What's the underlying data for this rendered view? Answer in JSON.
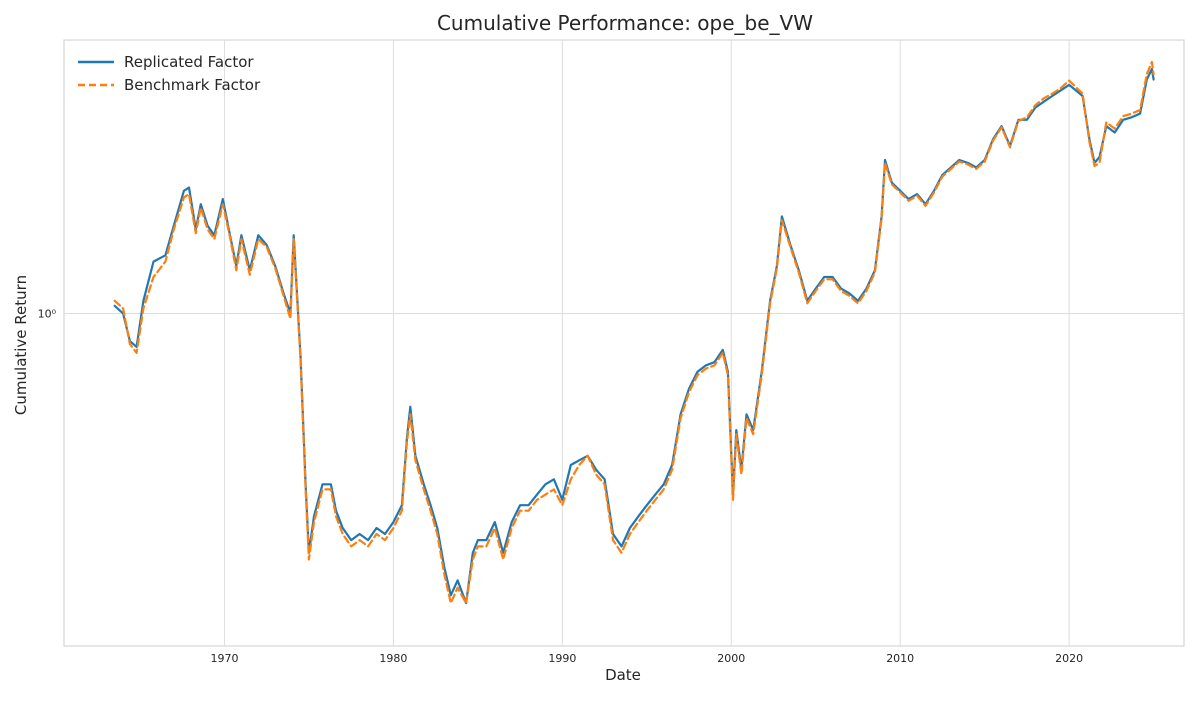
{
  "chart_data": {
    "type": "line",
    "title": "Cumulative Performance: ope_be_VW",
    "xlabel": "Date",
    "ylabel": "Cumulative Return",
    "y_scale": "log",
    "ylim": [
      0.28,
      2.85
    ],
    "xlim": [
      1960.5,
      2026.8
    ],
    "x_ticks": [
      1970,
      1980,
      1990,
      2000,
      2010,
      2020
    ],
    "y_ticks": [
      1
    ],
    "y_tick_labels": [
      "10⁰"
    ],
    "grid": true,
    "legend_position": "top-left",
    "colors": {
      "replicated": "#1f77b4",
      "benchmark": "#ff7f0e"
    },
    "series": [
      {
        "name": "Replicated Factor",
        "style": "solid",
        "points": [
          [
            1963.5,
            1.03
          ],
          [
            1964.0,
            1.0
          ],
          [
            1964.4,
            0.9
          ],
          [
            1964.8,
            0.88
          ],
          [
            1965.2,
            1.05
          ],
          [
            1965.8,
            1.22
          ],
          [
            1966.5,
            1.25
          ],
          [
            1967.0,
            1.4
          ],
          [
            1967.6,
            1.6
          ],
          [
            1967.9,
            1.62
          ],
          [
            1968.3,
            1.38
          ],
          [
            1968.6,
            1.52
          ],
          [
            1969.0,
            1.4
          ],
          [
            1969.4,
            1.35
          ],
          [
            1969.9,
            1.55
          ],
          [
            1970.3,
            1.36
          ],
          [
            1970.7,
            1.2
          ],
          [
            1971.0,
            1.35
          ],
          [
            1971.5,
            1.18
          ],
          [
            1972.0,
            1.35
          ],
          [
            1972.5,
            1.3
          ],
          [
            1973.0,
            1.2
          ],
          [
            1973.5,
            1.08
          ],
          [
            1973.9,
            1.0
          ],
          [
            1974.1,
            1.35
          ],
          [
            1974.5,
            0.85
          ],
          [
            1974.8,
            0.52
          ],
          [
            1975.0,
            0.4
          ],
          [
            1975.3,
            0.46
          ],
          [
            1975.8,
            0.52
          ],
          [
            1976.3,
            0.52
          ],
          [
            1976.6,
            0.47
          ],
          [
            1977.0,
            0.44
          ],
          [
            1977.5,
            0.42
          ],
          [
            1978.0,
            0.43
          ],
          [
            1978.5,
            0.42
          ],
          [
            1979.0,
            0.44
          ],
          [
            1979.5,
            0.43
          ],
          [
            1980.0,
            0.45
          ],
          [
            1980.5,
            0.48
          ],
          [
            1980.8,
            0.62
          ],
          [
            1981.0,
            0.7
          ],
          [
            1981.3,
            0.58
          ],
          [
            1981.8,
            0.52
          ],
          [
            1982.2,
            0.48
          ],
          [
            1982.6,
            0.44
          ],
          [
            1983.0,
            0.38
          ],
          [
            1983.4,
            0.34
          ],
          [
            1983.8,
            0.36
          ],
          [
            1984.3,
            0.33
          ],
          [
            1984.7,
            0.4
          ],
          [
            1985.0,
            0.42
          ],
          [
            1985.5,
            0.42
          ],
          [
            1986.0,
            0.45
          ],
          [
            1986.5,
            0.4
          ],
          [
            1987.0,
            0.45
          ],
          [
            1987.5,
            0.48
          ],
          [
            1988.0,
            0.48
          ],
          [
            1988.5,
            0.5
          ],
          [
            1989.0,
            0.52
          ],
          [
            1989.5,
            0.53
          ],
          [
            1990.0,
            0.49
          ],
          [
            1990.5,
            0.56
          ],
          [
            1991.0,
            0.57
          ],
          [
            1991.5,
            0.58
          ],
          [
            1992.0,
            0.55
          ],
          [
            1992.5,
            0.53
          ],
          [
            1993.0,
            0.43
          ],
          [
            1993.5,
            0.41
          ],
          [
            1994.0,
            0.44
          ],
          [
            1994.5,
            0.46
          ],
          [
            1995.0,
            0.48
          ],
          [
            1995.5,
            0.5
          ],
          [
            1996.0,
            0.52
          ],
          [
            1996.5,
            0.56
          ],
          [
            1997.0,
            0.68
          ],
          [
            1997.5,
            0.75
          ],
          [
            1998.0,
            0.8
          ],
          [
            1998.5,
            0.82
          ],
          [
            1999.0,
            0.83
          ],
          [
            1999.5,
            0.87
          ],
          [
            1999.8,
            0.8
          ],
          [
            2000.1,
            0.5
          ],
          [
            2000.3,
            0.64
          ],
          [
            2000.6,
            0.55
          ],
          [
            2000.9,
            0.68
          ],
          [
            2001.3,
            0.64
          ],
          [
            2001.8,
            0.8
          ],
          [
            2002.3,
            1.05
          ],
          [
            2002.7,
            1.2
          ],
          [
            2003.0,
            1.45
          ],
          [
            2003.5,
            1.3
          ],
          [
            2004.0,
            1.18
          ],
          [
            2004.5,
            1.05
          ],
          [
            2005.0,
            1.1
          ],
          [
            2005.5,
            1.15
          ],
          [
            2006.0,
            1.15
          ],
          [
            2006.5,
            1.1
          ],
          [
            2007.0,
            1.08
          ],
          [
            2007.5,
            1.05
          ],
          [
            2008.0,
            1.1
          ],
          [
            2008.5,
            1.18
          ],
          [
            2008.9,
            1.45
          ],
          [
            2009.1,
            1.8
          ],
          [
            2009.5,
            1.65
          ],
          [
            2010.0,
            1.6
          ],
          [
            2010.5,
            1.55
          ],
          [
            2011.0,
            1.58
          ],
          [
            2011.5,
            1.52
          ],
          [
            2012.0,
            1.6
          ],
          [
            2012.5,
            1.7
          ],
          [
            2013.0,
            1.75
          ],
          [
            2013.5,
            1.8
          ],
          [
            2014.0,
            1.78
          ],
          [
            2014.5,
            1.75
          ],
          [
            2015.0,
            1.8
          ],
          [
            2015.5,
            1.95
          ],
          [
            2016.0,
            2.05
          ],
          [
            2016.5,
            1.9
          ],
          [
            2017.0,
            2.1
          ],
          [
            2017.5,
            2.1
          ],
          [
            2018.0,
            2.2
          ],
          [
            2018.5,
            2.25
          ],
          [
            2019.0,
            2.3
          ],
          [
            2019.5,
            2.35
          ],
          [
            2020.0,
            2.4
          ],
          [
            2020.4,
            2.35
          ],
          [
            2020.8,
            2.3
          ],
          [
            2021.2,
            1.95
          ],
          [
            2021.5,
            1.78
          ],
          [
            2021.8,
            1.82
          ],
          [
            2022.2,
            2.05
          ],
          [
            2022.7,
            2.0
          ],
          [
            2023.2,
            2.1
          ],
          [
            2023.7,
            2.12
          ],
          [
            2024.2,
            2.15
          ],
          [
            2024.6,
            2.45
          ],
          [
            2024.9,
            2.55
          ],
          [
            2025.0,
            2.45
          ]
        ]
      },
      {
        "name": "Benchmark Factor",
        "style": "dashed",
        "points": [
          [
            1963.5,
            1.05
          ],
          [
            1964.0,
            1.02
          ],
          [
            1964.4,
            0.89
          ],
          [
            1964.8,
            0.86
          ],
          [
            1965.2,
            1.02
          ],
          [
            1965.8,
            1.15
          ],
          [
            1966.5,
            1.22
          ],
          [
            1967.0,
            1.38
          ],
          [
            1967.6,
            1.56
          ],
          [
            1967.9,
            1.58
          ],
          [
            1968.3,
            1.36
          ],
          [
            1968.6,
            1.5
          ],
          [
            1969.0,
            1.38
          ],
          [
            1969.4,
            1.33
          ],
          [
            1969.9,
            1.52
          ],
          [
            1970.3,
            1.35
          ],
          [
            1970.7,
            1.18
          ],
          [
            1971.0,
            1.33
          ],
          [
            1971.5,
            1.16
          ],
          [
            1972.0,
            1.33
          ],
          [
            1972.5,
            1.29
          ],
          [
            1973.0,
            1.19
          ],
          [
            1973.5,
            1.07
          ],
          [
            1973.9,
            0.98
          ],
          [
            1974.1,
            1.33
          ],
          [
            1974.5,
            0.84
          ],
          [
            1974.8,
            0.51
          ],
          [
            1975.0,
            0.39
          ],
          [
            1975.3,
            0.45
          ],
          [
            1975.8,
            0.51
          ],
          [
            1976.3,
            0.51
          ],
          [
            1976.6,
            0.46
          ],
          [
            1977.0,
            0.43
          ],
          [
            1977.5,
            0.41
          ],
          [
            1978.0,
            0.42
          ],
          [
            1978.5,
            0.41
          ],
          [
            1979.0,
            0.43
          ],
          [
            1979.5,
            0.42
          ],
          [
            1980.0,
            0.44
          ],
          [
            1980.5,
            0.47
          ],
          [
            1980.8,
            0.61
          ],
          [
            1981.0,
            0.68
          ],
          [
            1981.3,
            0.57
          ],
          [
            1981.8,
            0.51
          ],
          [
            1982.2,
            0.47
          ],
          [
            1982.6,
            0.43
          ],
          [
            1983.0,
            0.37
          ],
          [
            1983.4,
            0.33
          ],
          [
            1983.8,
            0.35
          ],
          [
            1984.3,
            0.33
          ],
          [
            1984.7,
            0.39
          ],
          [
            1985.0,
            0.41
          ],
          [
            1985.5,
            0.41
          ],
          [
            1986.0,
            0.44
          ],
          [
            1986.5,
            0.39
          ],
          [
            1987.0,
            0.44
          ],
          [
            1987.5,
            0.47
          ],
          [
            1988.0,
            0.47
          ],
          [
            1988.5,
            0.49
          ],
          [
            1989.0,
            0.5
          ],
          [
            1989.5,
            0.51
          ],
          [
            1990.0,
            0.48
          ],
          [
            1990.5,
            0.53
          ],
          [
            1991.0,
            0.56
          ],
          [
            1991.5,
            0.58
          ],
          [
            1992.0,
            0.54
          ],
          [
            1992.5,
            0.52
          ],
          [
            1993.0,
            0.42
          ],
          [
            1993.5,
            0.4
          ],
          [
            1994.0,
            0.43
          ],
          [
            1994.5,
            0.45
          ],
          [
            1995.0,
            0.47
          ],
          [
            1995.5,
            0.49
          ],
          [
            1996.0,
            0.51
          ],
          [
            1996.5,
            0.55
          ],
          [
            1997.0,
            0.67
          ],
          [
            1997.5,
            0.74
          ],
          [
            1998.0,
            0.79
          ],
          [
            1998.5,
            0.81
          ],
          [
            1999.0,
            0.82
          ],
          [
            1999.5,
            0.86
          ],
          [
            1999.8,
            0.79
          ],
          [
            2000.1,
            0.49
          ],
          [
            2000.3,
            0.63
          ],
          [
            2000.6,
            0.54
          ],
          [
            2000.9,
            0.67
          ],
          [
            2001.3,
            0.63
          ],
          [
            2001.8,
            0.79
          ],
          [
            2002.3,
            1.04
          ],
          [
            2002.7,
            1.19
          ],
          [
            2003.0,
            1.43
          ],
          [
            2003.5,
            1.29
          ],
          [
            2004.0,
            1.17
          ],
          [
            2004.5,
            1.04
          ],
          [
            2005.0,
            1.09
          ],
          [
            2005.5,
            1.14
          ],
          [
            2006.0,
            1.14
          ],
          [
            2006.5,
            1.09
          ],
          [
            2007.0,
            1.07
          ],
          [
            2007.5,
            1.04
          ],
          [
            2008.0,
            1.09
          ],
          [
            2008.5,
            1.17
          ],
          [
            2008.9,
            1.44
          ],
          [
            2009.1,
            1.78
          ],
          [
            2009.5,
            1.64
          ],
          [
            2010.0,
            1.59
          ],
          [
            2010.5,
            1.54
          ],
          [
            2011.0,
            1.57
          ],
          [
            2011.5,
            1.51
          ],
          [
            2012.0,
            1.59
          ],
          [
            2012.5,
            1.69
          ],
          [
            2013.0,
            1.74
          ],
          [
            2013.5,
            1.79
          ],
          [
            2014.0,
            1.77
          ],
          [
            2014.5,
            1.74
          ],
          [
            2015.0,
            1.79
          ],
          [
            2015.5,
            1.94
          ],
          [
            2016.0,
            2.04
          ],
          [
            2016.5,
            1.89
          ],
          [
            2017.0,
            2.09
          ],
          [
            2017.5,
            2.12
          ],
          [
            2018.0,
            2.22
          ],
          [
            2018.5,
            2.28
          ],
          [
            2019.0,
            2.32
          ],
          [
            2019.5,
            2.37
          ],
          [
            2020.0,
            2.44
          ],
          [
            2020.4,
            2.38
          ],
          [
            2020.8,
            2.32
          ],
          [
            2021.2,
            1.93
          ],
          [
            2021.5,
            1.76
          ],
          [
            2021.8,
            1.78
          ],
          [
            2022.2,
            2.08
          ],
          [
            2022.7,
            2.03
          ],
          [
            2023.2,
            2.13
          ],
          [
            2023.7,
            2.15
          ],
          [
            2024.2,
            2.18
          ],
          [
            2024.6,
            2.5
          ],
          [
            2024.9,
            2.62
          ],
          [
            2025.0,
            2.5
          ]
        ]
      }
    ]
  }
}
